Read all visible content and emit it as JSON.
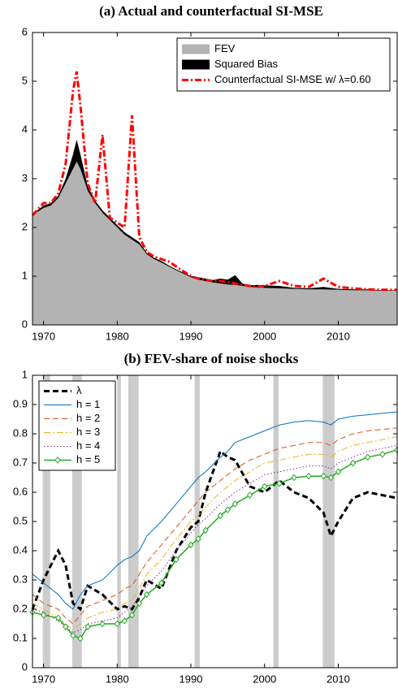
{
  "chart_data": [
    {
      "type": "area",
      "title": "(a) Actual and counterfactual SI-MSE",
      "x": [
        1968.5,
        1970,
        1971,
        1972,
        1973,
        1974,
        1974.5,
        1975,
        1976,
        1977,
        1978,
        1979,
        1980,
        1981,
        1982,
        1983,
        1984,
        1985,
        1986,
        1987,
        1988,
        1989,
        1990,
        1991,
        1992,
        1993,
        1994,
        1995,
        1996,
        1997,
        1998,
        1999,
        2000,
        2002,
        2004,
        2006,
        2008,
        2010,
        2012,
        2014,
        2016,
        2018
      ],
      "series": [
        {
          "name": "FEV",
          "color": "#b3b3b3",
          "fill": true,
          "values": [
            2.25,
            2.4,
            2.45,
            2.6,
            2.9,
            3.2,
            3.35,
            3.2,
            2.75,
            2.5,
            2.3,
            2.15,
            2.0,
            1.85,
            1.75,
            1.65,
            1.45,
            1.35,
            1.28,
            1.2,
            1.12,
            1.05,
            0.98,
            0.93,
            0.9,
            0.87,
            0.85,
            0.83,
            0.82,
            0.8,
            0.78,
            0.77,
            0.76,
            0.75,
            0.74,
            0.73,
            0.73,
            0.72,
            0.71,
            0.71,
            0.7,
            0.7
          ]
        },
        {
          "name": "Squared Bias",
          "color": "#000000",
          "fill": true,
          "stacked": true,
          "values": [
            0.02,
            0.05,
            0.05,
            0.05,
            0.1,
            0.3,
            0.45,
            0.3,
            0.1,
            0.05,
            0.05,
            0.05,
            0.05,
            0.05,
            0.05,
            0.05,
            0.03,
            0.03,
            0.03,
            0.02,
            0.02,
            0.02,
            0.02,
            0.05,
            0.05,
            0.05,
            0.1,
            0.1,
            0.2,
            0.05,
            0.03,
            0.05,
            0.05,
            0.05,
            0.02,
            0.02,
            0.05,
            0.02,
            0.02,
            0.02,
            0.01,
            0.01
          ]
        },
        {
          "name": "Counterfactual SI-MSE w/ λ=0.60",
          "color": "#ff0000",
          "linestyle": "dashdot",
          "width": 3,
          "values": [
            2.25,
            2.5,
            2.5,
            2.7,
            3.3,
            4.8,
            5.2,
            4.5,
            2.9,
            2.5,
            3.9,
            2.2,
            2.1,
            2.0,
            4.3,
            1.8,
            1.5,
            1.4,
            1.35,
            1.3,
            1.2,
            1.1,
            1.0,
            0.95,
            0.92,
            0.9,
            0.9,
            0.88,
            0.85,
            0.82,
            0.8,
            0.78,
            0.8,
            0.9,
            0.8,
            0.78,
            0.95,
            0.78,
            0.75,
            0.73,
            0.72,
            0.72
          ]
        }
      ],
      "xlim": [
        1968.5,
        2018
      ],
      "xticks": [
        1970,
        1980,
        1990,
        2000,
        2010
      ],
      "ylim": [
        0,
        6
      ],
      "yticks": [
        0,
        1,
        2,
        3,
        4,
        5,
        6
      ],
      "legend": "upper right"
    },
    {
      "type": "line",
      "title": "(b) FEV-share of noise shocks",
      "shaded": [
        [
          1969.9,
          1970.9
        ],
        [
          1973.9,
          1975.2
        ],
        [
          1980,
          1980.5
        ],
        [
          1981.5,
          1982.9
        ],
        [
          1990.5,
          1991.2
        ],
        [
          2001.2,
          2001.9
        ],
        [
          2007.9,
          2009.5
        ]
      ],
      "shade_color": "#cccccc",
      "x": [
        1968.5,
        1970,
        1972,
        1973,
        1974,
        1975,
        1976,
        1978,
        1980,
        1981,
        1982,
        1983,
        1984,
        1986,
        1988,
        1990,
        1991,
        1992,
        1994,
        1995,
        1996,
        1998,
        2000,
        2002,
        2004,
        2006,
        2008,
        2009,
        2010,
        2012,
        2014,
        2016,
        2018
      ],
      "series": [
        {
          "name": "λ",
          "color": "#000000",
          "linestyle": "dashed",
          "width": 3,
          "values": [
            0.2,
            0.3,
            0.4,
            0.35,
            0.22,
            0.2,
            0.28,
            0.25,
            0.2,
            0.21,
            0.2,
            0.24,
            0.3,
            0.27,
            0.4,
            0.48,
            0.5,
            0.6,
            0.74,
            0.72,
            0.71,
            0.62,
            0.6,
            0.64,
            0.6,
            0.58,
            0.53,
            0.45,
            0.5,
            0.58,
            0.6,
            0.59,
            0.58
          ]
        },
        {
          "name": "h = 1",
          "color": "#0072bd",
          "linestyle": "solid",
          "width": 1,
          "values": [
            0.32,
            0.29,
            0.25,
            0.22,
            0.2,
            0.25,
            0.28,
            0.3,
            0.35,
            0.37,
            0.38,
            0.4,
            0.45,
            0.5,
            0.56,
            0.62,
            0.65,
            0.67,
            0.72,
            0.74,
            0.77,
            0.79,
            0.81,
            0.83,
            0.84,
            0.845,
            0.84,
            0.83,
            0.85,
            0.86,
            0.865,
            0.87,
            0.875
          ]
        },
        {
          "name": "h = 2",
          "color": "#d95319",
          "linestyle": "dashed",
          "width": 1,
          "values": [
            0.25,
            0.22,
            0.2,
            0.17,
            0.15,
            0.18,
            0.21,
            0.23,
            0.25,
            0.27,
            0.28,
            0.32,
            0.36,
            0.42,
            0.48,
            0.54,
            0.57,
            0.6,
            0.64,
            0.66,
            0.68,
            0.71,
            0.73,
            0.75,
            0.76,
            0.77,
            0.77,
            0.76,
            0.78,
            0.8,
            0.81,
            0.815,
            0.82
          ]
        },
        {
          "name": "h = 3",
          "color": "#edb120",
          "linestyle": "dashdot",
          "width": 1,
          "values": [
            0.22,
            0.2,
            0.17,
            0.15,
            0.13,
            0.15,
            0.17,
            0.19,
            0.2,
            0.22,
            0.23,
            0.27,
            0.32,
            0.37,
            0.44,
            0.5,
            0.52,
            0.55,
            0.6,
            0.62,
            0.64,
            0.67,
            0.7,
            0.71,
            0.72,
            0.73,
            0.73,
            0.72,
            0.74,
            0.76,
            0.77,
            0.78,
            0.79
          ]
        },
        {
          "name": "h = 4",
          "color": "#7e2f8e",
          "linestyle": "dotted",
          "width": 1,
          "values": [
            0.2,
            0.19,
            0.16,
            0.14,
            0.12,
            0.13,
            0.15,
            0.16,
            0.17,
            0.19,
            0.21,
            0.24,
            0.28,
            0.33,
            0.4,
            0.46,
            0.49,
            0.51,
            0.56,
            0.58,
            0.6,
            0.63,
            0.66,
            0.67,
            0.68,
            0.69,
            0.69,
            0.68,
            0.7,
            0.72,
            0.74,
            0.75,
            0.76
          ]
        },
        {
          "name": "h = 5",
          "color": "#22aa22",
          "linestyle": "solid",
          "width": 1.5,
          "marker": "diamond",
          "values": [
            0.19,
            0.18,
            0.17,
            0.14,
            0.11,
            0.1,
            0.14,
            0.15,
            0.15,
            0.16,
            0.18,
            0.22,
            0.25,
            0.29,
            0.37,
            0.42,
            0.44,
            0.47,
            0.52,
            0.54,
            0.56,
            0.59,
            0.62,
            0.63,
            0.65,
            0.655,
            0.655,
            0.65,
            0.67,
            0.7,
            0.72,
            0.73,
            0.745
          ]
        }
      ],
      "xlim": [
        1968.5,
        2018
      ],
      "xticks": [
        1970,
        1980,
        1990,
        2000,
        2010
      ],
      "ylim": [
        0,
        1
      ],
      "yticks": [
        0,
        0.1,
        0.2,
        0.3,
        0.4,
        0.5,
        0.6,
        0.7,
        0.8,
        0.9,
        1
      ],
      "legend": "upper left"
    }
  ]
}
